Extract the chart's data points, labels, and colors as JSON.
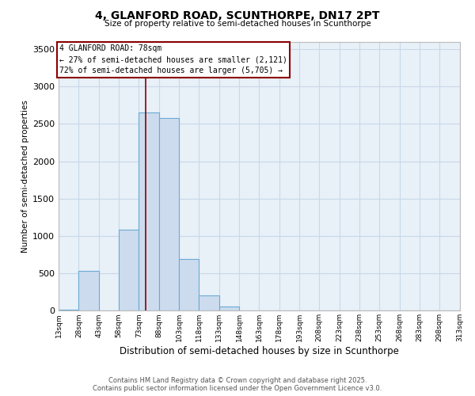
{
  "title": "4, GLANFORD ROAD, SCUNTHORPE, DN17 2PT",
  "subtitle": "Size of property relative to semi-detached houses in Scunthorpe",
  "xlabel": "Distribution of semi-detached houses by size in Scunthorpe",
  "ylabel": "Number of semi-detached properties",
  "property_size": 78,
  "property_label": "4 GLANFORD ROAD: 78sqm",
  "annotation_smaller": "← 27% of semi-detached houses are smaller (2,121)",
  "annotation_larger": "72% of semi-detached houses are larger (5,705) →",
  "bin_edges": [
    13,
    28,
    43,
    58,
    73,
    88,
    103,
    118,
    133,
    148,
    163,
    178,
    193,
    208,
    223,
    238,
    253,
    268,
    283,
    298,
    313
  ],
  "bin_labels": [
    "13sqm",
    "28sqm",
    "43sqm",
    "58sqm",
    "73sqm",
    "88sqm",
    "103sqm",
    "118sqm",
    "133sqm",
    "148sqm",
    "163sqm",
    "178sqm",
    "193sqm",
    "208sqm",
    "223sqm",
    "238sqm",
    "253sqm",
    "268sqm",
    "283sqm",
    "298sqm",
    "313sqm"
  ],
  "counts": [
    10,
    530,
    0,
    1080,
    2650,
    2580,
    690,
    200,
    60,
    0,
    0,
    0,
    0,
    0,
    0,
    0,
    0,
    0,
    0,
    0
  ],
  "bar_color": "#ccdcee",
  "bar_edge_color": "#6aaad4",
  "highlight_color": "#8b0000",
  "grid_color": "#c8d8e8",
  "background_color": "#e8f0f8",
  "yticks": [
    0,
    500,
    1000,
    1500,
    2000,
    2500,
    3000,
    3500
  ],
  "ylim": [
    0,
    3600
  ],
  "footer_line1": "Contains HM Land Registry data © Crown copyright and database right 2025.",
  "footer_line2": "Contains public sector information licensed under the Open Government Licence v3.0."
}
